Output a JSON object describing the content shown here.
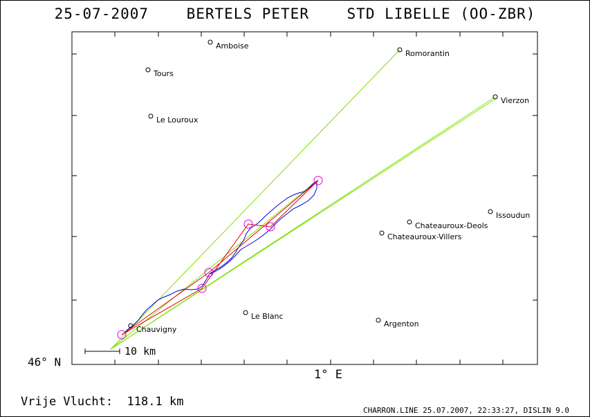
{
  "header": {
    "title": "25-07-2007    BERTELS PETER    STD LIBELLE (OO-ZBR)"
  },
  "axes": {
    "lat_label": "46° N",
    "lon_label": "1° E"
  },
  "scale": {
    "label": "10 km"
  },
  "distance": {
    "label": "Vrije Vlucht:",
    "value": "118.1 km"
  },
  "footer": {
    "text": "CHARRON.LINE 25.07.2007, 22:33:27, DISLIN 9.0"
  },
  "places": [
    {
      "name": "Amboise"
    },
    {
      "name": "Romorantin"
    },
    {
      "name": "Tours"
    },
    {
      "name": "Vierzon"
    },
    {
      "name": "Le Louroux"
    },
    {
      "name": "Issoudun"
    },
    {
      "name": "Chateauroux-Deols"
    },
    {
      "name": "Chateauroux-Villers"
    },
    {
      "name": "Le Blanc"
    },
    {
      "name": "Argenton"
    },
    {
      "name": "Chauvigny"
    }
  ],
  "colors": {
    "sector_lines": "#7fe000",
    "task_lines": "#e00000",
    "track": "#0000d0",
    "turnpoints": "#e000e0",
    "axes": "#000000"
  }
}
